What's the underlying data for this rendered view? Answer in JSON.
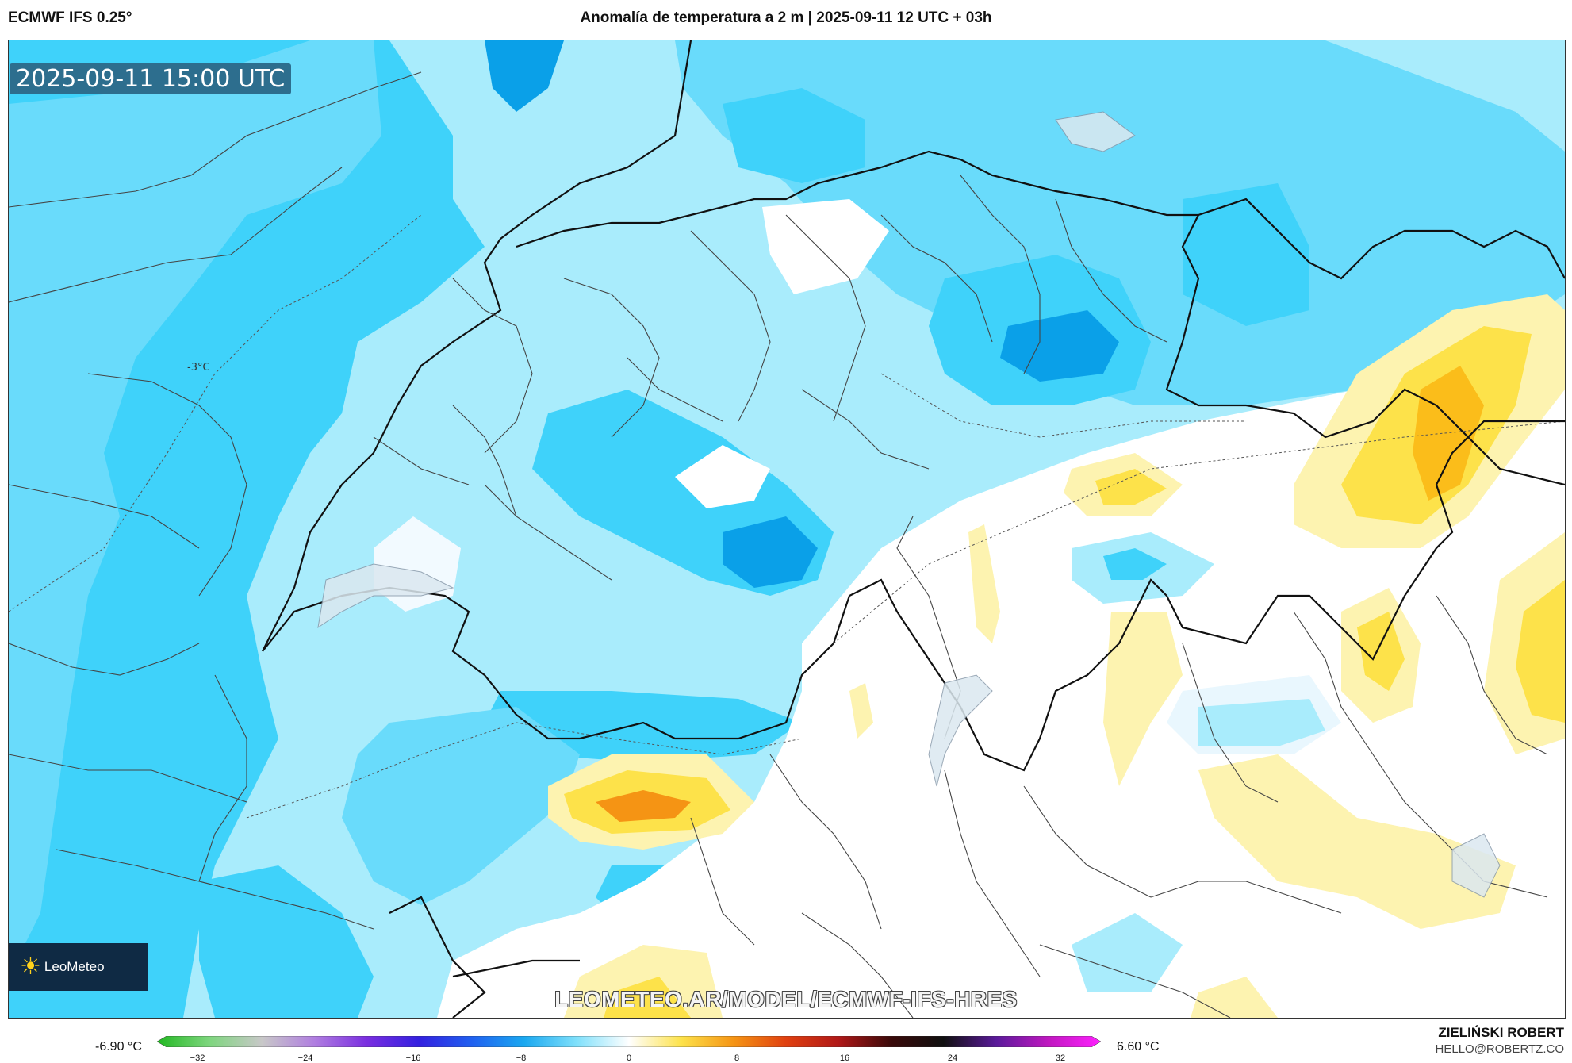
{
  "header": {
    "model": "ECMWF IFS 0.25°",
    "title": "Anomalía de temperatura a 2 m | 2025-09-11 12 UTC + 03h"
  },
  "map": {
    "valid_time": "2025-09-11 15:00 UTC",
    "isoline_label": "-3°C",
    "region_colors": {
      "strong_cold": "#0aa0e8",
      "moderate_cold": "#3fd2fa",
      "mild_cold": "#69dbfb",
      "slight_cold": "#a9ecfc",
      "neutral": "#ffffff",
      "near_zero_cold": "#e9f7fe",
      "slight_warm": "#fdf3b0",
      "warm": "#fde24a",
      "warmer": "#fbbd1a",
      "hot": "#f59414"
    }
  },
  "logo": {
    "text": "LeoMeteo",
    "sun_icon": "sun-icon"
  },
  "watermark": "LEOMETEO.AR/MODEL/ECMWF-IFS-HRES",
  "colorbar": {
    "min_label": "-6.90 °C",
    "max_label": "6.60 °C",
    "ticks": [
      {
        "value": -32,
        "label": "−32"
      },
      {
        "value": -24,
        "label": "−24"
      },
      {
        "value": -16,
        "label": "−16"
      },
      {
        "value": -8,
        "label": "−8"
      },
      {
        "value": 0,
        "label": "0"
      },
      {
        "value": 8,
        "label": "8"
      },
      {
        "value": 16,
        "label": "16"
      },
      {
        "value": 24,
        "label": "24"
      },
      {
        "value": 32,
        "label": "32"
      }
    ],
    "range": [
      -35,
      35
    ],
    "stops": [
      "#22b822",
      "#7ed67e",
      "#c8c8c8",
      "#b07ee0",
      "#7a2ee0",
      "#3320e0",
      "#2060f0",
      "#1aa8f0",
      "#7fe0fb",
      "#ffffff",
      "#fde24a",
      "#f59414",
      "#e04010",
      "#b01818",
      "#3a0a0a",
      "#101010",
      "#5a1a9a",
      "#c018c0",
      "#ff20ff"
    ]
  },
  "author": {
    "name": "ZIELIŃSKI ROBERT",
    "email": "HELLO@ROBERTZ.CO"
  }
}
